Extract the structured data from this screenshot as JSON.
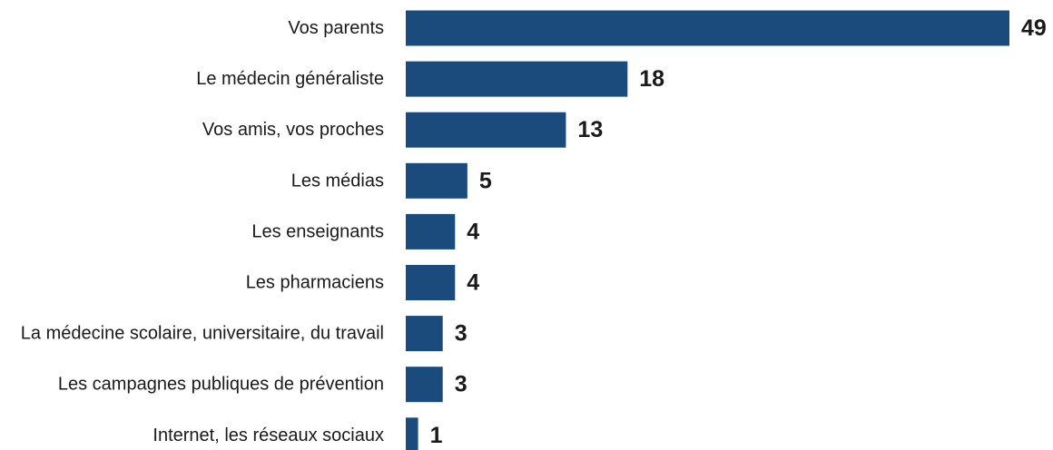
{
  "chart_data": {
    "type": "bar",
    "orientation": "horizontal",
    "categories": [
      "Vos parents",
      "Le médecin généraliste",
      "Vos amis, vos proches",
      "Les médias",
      "Les enseignants",
      "Les pharmaciens",
      "La médecine scolaire, universitaire, du travail",
      "Les campagnes publiques de prévention",
      "Internet, les réseaux sociaux"
    ],
    "values": [
      49,
      18,
      13,
      5,
      4,
      4,
      3,
      3,
      1
    ],
    "value_labels": [
      "49",
      "18",
      "13",
      "5",
      "4",
      "4",
      "3",
      "3",
      "1"
    ],
    "bar_color": "#1b4b7d",
    "xlim": [
      0,
      49
    ],
    "grid": false,
    "legend": "none"
  }
}
